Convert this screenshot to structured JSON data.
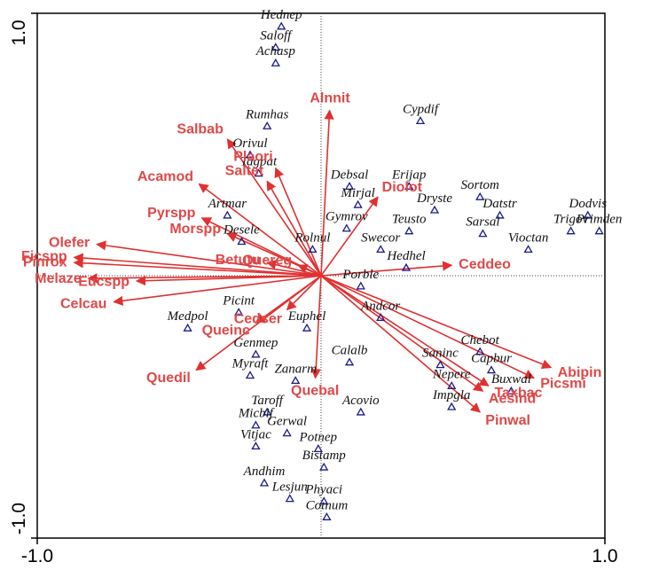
{
  "chart_data": {
    "type": "biplot",
    "xlim": [
      -1,
      1
    ],
    "ylim": [
      -1,
      1
    ],
    "xticks": [
      {
        "value": -1,
        "label": "-1.0"
      },
      {
        "value": 1,
        "label": "1.0"
      }
    ],
    "yticks": [
      {
        "value": -1,
        "label": "-1.0"
      },
      {
        "value": 1,
        "label": "1.0"
      }
    ],
    "point_color": "#1a1a8c",
    "arrow_color": "#e03030",
    "points": [
      {
        "label": "Hednep",
        "x": -0.14,
        "y": 0.95
      },
      {
        "label": "Saloff",
        "x": -0.16,
        "y": 0.87
      },
      {
        "label": "Achasp",
        "x": -0.16,
        "y": 0.81
      },
      {
        "label": "Rumhas",
        "x": -0.19,
        "y": 0.57
      },
      {
        "label": "Cypdif",
        "x": 0.35,
        "y": 0.59
      },
      {
        "label": "Orivul",
        "x": -0.25,
        "y": 0.46
      },
      {
        "label": "Tagpat",
        "x": -0.22,
        "y": 0.39
      },
      {
        "label": "Debsal",
        "x": 0.1,
        "y": 0.34
      },
      {
        "label": "Erijap",
        "x": 0.31,
        "y": 0.34
      },
      {
        "label": "Sortom",
        "x": 0.56,
        "y": 0.3
      },
      {
        "label": "Mirjal",
        "x": 0.13,
        "y": 0.27
      },
      {
        "label": "Dryste",
        "x": 0.4,
        "y": 0.25
      },
      {
        "label": "Artmar",
        "x": -0.33,
        "y": 0.23
      },
      {
        "label": "Datstr",
        "x": 0.63,
        "y": 0.23
      },
      {
        "label": "Dodvis",
        "x": 0.94,
        "y": 0.23
      },
      {
        "label": "Gymrov",
        "x": 0.09,
        "y": 0.18
      },
      {
        "label": "Teusto",
        "x": 0.31,
        "y": 0.17
      },
      {
        "label": "Sarsal",
        "x": 0.57,
        "y": 0.16
      },
      {
        "label": "Trigov",
        "x": 0.88,
        "y": 0.17
      },
      {
        "label": "Primden",
        "x": 0.98,
        "y": 0.17
      },
      {
        "label": "Desele",
        "x": -0.28,
        "y": 0.13
      },
      {
        "label": "Rolnul",
        "x": -0.03,
        "y": 0.1
      },
      {
        "label": "Swecor",
        "x": 0.21,
        "y": 0.1
      },
      {
        "label": "Vioctan",
        "x": 0.73,
        "y": 0.1
      },
      {
        "label": "Hedhel",
        "x": 0.3,
        "y": 0.03
      },
      {
        "label": "Porble",
        "x": 0.14,
        "y": -0.04
      },
      {
        "label": "Andcor",
        "x": 0.21,
        "y": -0.16
      },
      {
        "label": "Picint",
        "x": -0.29,
        "y": -0.14
      },
      {
        "label": "Medpol",
        "x": -0.47,
        "y": -0.2
      },
      {
        "label": "Euphel",
        "x": -0.05,
        "y": -0.2
      },
      {
        "label": "Chebot",
        "x": 0.56,
        "y": -0.29
      },
      {
        "label": "Genmep",
        "x": -0.23,
        "y": -0.3
      },
      {
        "label": "Calalb",
        "x": 0.1,
        "y": -0.33
      },
      {
        "label": "Saninc",
        "x": 0.42,
        "y": -0.34
      },
      {
        "label": "Capbur",
        "x": 0.6,
        "y": -0.36
      },
      {
        "label": "Myraft",
        "x": -0.25,
        "y": -0.38
      },
      {
        "label": "Zanarm",
        "x": -0.09,
        "y": -0.4
      },
      {
        "label": "Nepere",
        "x": 0.46,
        "y": -0.42
      },
      {
        "label": "Buxwal",
        "x": 0.67,
        "y": -0.44
      },
      {
        "label": "Impgla",
        "x": 0.46,
        "y": -0.5
      },
      {
        "label": "Taroff",
        "x": -0.19,
        "y": -0.52
      },
      {
        "label": "Acovio",
        "x": 0.14,
        "y": -0.52
      },
      {
        "label": "Micbif",
        "x": -0.23,
        "y": -0.57
      },
      {
        "label": "Gerwal",
        "x": -0.12,
        "y": -0.6
      },
      {
        "label": "Vitjac",
        "x": -0.23,
        "y": -0.65
      },
      {
        "label": "Potnep",
        "x": -0.01,
        "y": -0.66
      },
      {
        "label": "Bistamp",
        "x": 0.01,
        "y": -0.73
      },
      {
        "label": "Andhim",
        "x": -0.2,
        "y": -0.79
      },
      {
        "label": "Lesjun",
        "x": -0.11,
        "y": -0.85
      },
      {
        "label": "Phyaci",
        "x": 0.01,
        "y": -0.86
      },
      {
        "label": "Cotnum",
        "x": 0.02,
        "y": -0.92
      }
    ],
    "arrows": [
      {
        "label": "Alnnit",
        "x": 0.03,
        "y": 0.63
      },
      {
        "label": "Salbab",
        "x": -0.33,
        "y": 0.52
      },
      {
        "label": "Diolot",
        "x": 0.2,
        "y": 0.3
      },
      {
        "label": "Plaori",
        "x": -0.16,
        "y": 0.41
      },
      {
        "label": "Saltet",
        "x": -0.19,
        "y": 0.36
      },
      {
        "label": "Acamod",
        "x": -0.43,
        "y": 0.35
      },
      {
        "label": "Pyrspp",
        "x": -0.42,
        "y": 0.22
      },
      {
        "label": "Morspp",
        "x": -0.33,
        "y": 0.16
      },
      {
        "label": "Olefer",
        "x": -0.79,
        "y": 0.12
      },
      {
        "label": "Ficspp",
        "x": -0.87,
        "y": 0.07
      },
      {
        "label": "Pinrox",
        "x": -0.87,
        "y": 0.05
      },
      {
        "label": "Melaze",
        "x": -0.82,
        "y": -0.01
      },
      {
        "label": "Eucspp",
        "x": -0.65,
        "y": -0.02
      },
      {
        "label": "Celcau",
        "x": -0.73,
        "y": -0.1
      },
      {
        "label": "Betutu",
        "x": -0.19,
        "y": 0.05
      },
      {
        "label": "Quereg",
        "x": -0.08,
        "y": 0.04
      },
      {
        "label": "Ceddeo",
        "x": 0.46,
        "y": 0.04
      },
      {
        "label": "Cedser",
        "x": -0.12,
        "y": -0.13
      },
      {
        "label": "Queinc",
        "x": -0.23,
        "y": -0.18
      },
      {
        "label": "Quedil",
        "x": -0.44,
        "y": -0.36
      },
      {
        "label": "Quebal",
        "x": -0.02,
        "y": -0.39
      },
      {
        "label": "Abipin",
        "x": 0.81,
        "y": -0.35
      },
      {
        "label": "Picsmi",
        "x": 0.75,
        "y": -0.39
      },
      {
        "label": "Taxbac",
        "x": 0.59,
        "y": -0.42
      },
      {
        "label": "Aesind",
        "x": 0.57,
        "y": -0.44
      },
      {
        "label": "Pinwal",
        "x": 0.56,
        "y": -0.52
      }
    ]
  }
}
